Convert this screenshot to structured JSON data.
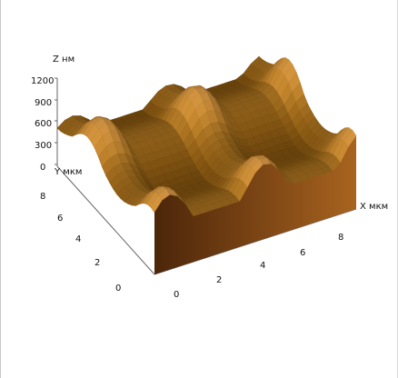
{
  "chart_data": {
    "type": "surface-3d",
    "title": "",
    "zlabel": "Z нм",
    "ylabel": "Y мкм",
    "xlabel": "X мкм",
    "z_ticks": [
      "1200",
      "900",
      "600",
      "300",
      "0"
    ],
    "y_ticks": [
      "8",
      "6",
      "4",
      "2",
      "0"
    ],
    "x_ticks": [
      "0",
      "2",
      "4",
      "6",
      "8"
    ],
    "xlim": [
      0,
      9
    ],
    "ylim": [
      0,
      9
    ],
    "zlim": [
      0,
      1200
    ],
    "grid": false,
    "colormap": [
      "#2a1400",
      "#5e2f08",
      "#9a5518",
      "#c8822c",
      "#f0c070"
    ]
  }
}
